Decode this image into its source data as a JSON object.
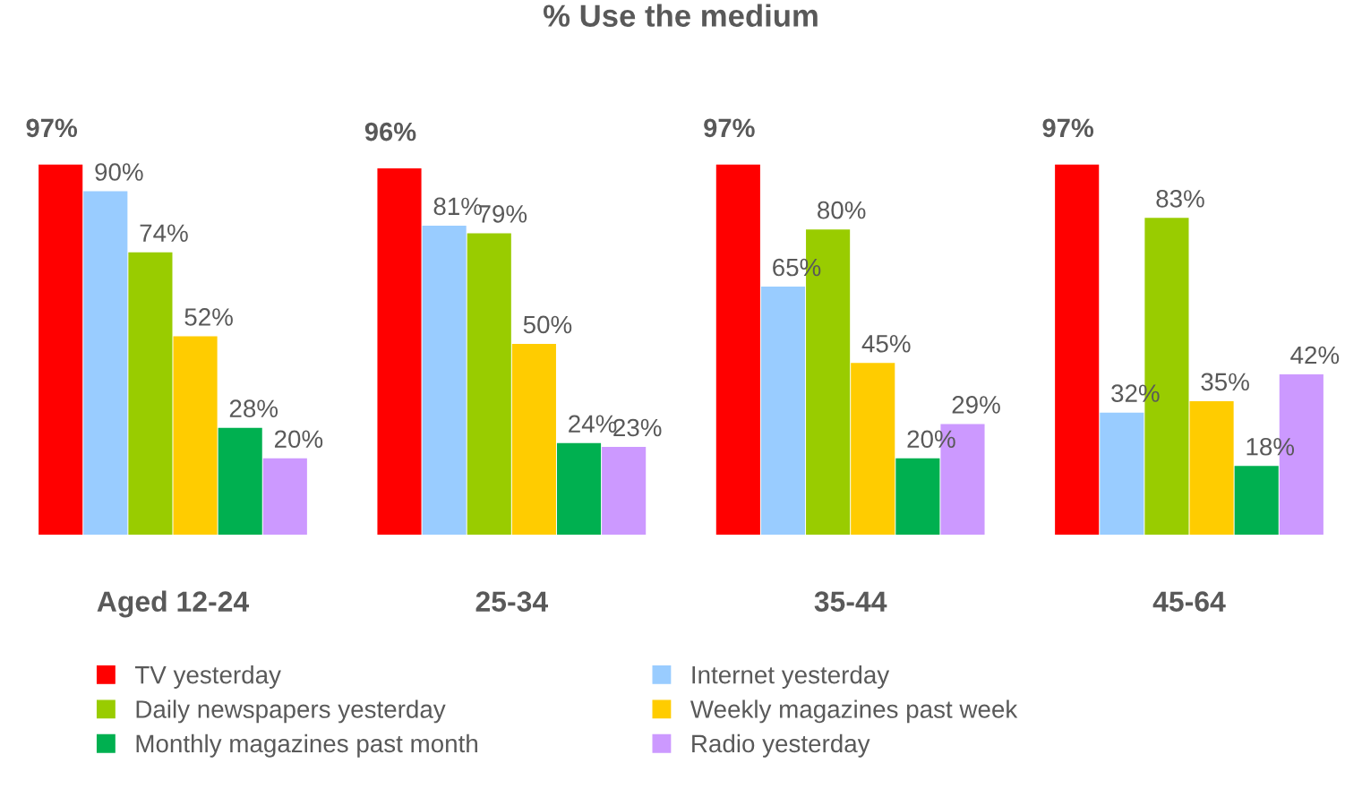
{
  "chart_data": {
    "type": "bar",
    "title": "% Use the medium",
    "categories": [
      "Aged 12-24",
      "25-34",
      "35-44",
      "45-64"
    ],
    "series": [
      {
        "name": "TV yesterday",
        "color": "#ff0000",
        "values": [
          97,
          96,
          97,
          97
        ],
        "value_labels": [
          "97%",
          "96%",
          "97%",
          "97%"
        ]
      },
      {
        "name": "Internet yesterday",
        "color": "#99ccff",
        "values": [
          90,
          81,
          65,
          32
        ],
        "value_labels": [
          "90%",
          "81%",
          "65%",
          "32%"
        ]
      },
      {
        "name": "Daily newspapers yesterday",
        "color": "#99cc00",
        "values": [
          74,
          79,
          80,
          83
        ],
        "value_labels": [
          "74%",
          "79%",
          "80%",
          "83%"
        ]
      },
      {
        "name": "Weekly magazines past week",
        "color": "#ffcc00",
        "values": [
          52,
          50,
          45,
          35
        ],
        "value_labels": [
          "52%",
          "50%",
          "45%",
          "35%"
        ]
      },
      {
        "name": "Monthly magazines past month",
        "color": "#00b050",
        "values": [
          28,
          24,
          20,
          18
        ],
        "value_labels": [
          "28%",
          "24%",
          "20%",
          "18%"
        ]
      },
      {
        "name": "Radio yesterday",
        "color": "#cc99ff",
        "values": [
          20,
          23,
          29,
          42
        ],
        "value_labels": [
          "20%",
          "23%",
          "29%",
          "42%"
        ]
      }
    ],
    "legend": "bottom"
  }
}
